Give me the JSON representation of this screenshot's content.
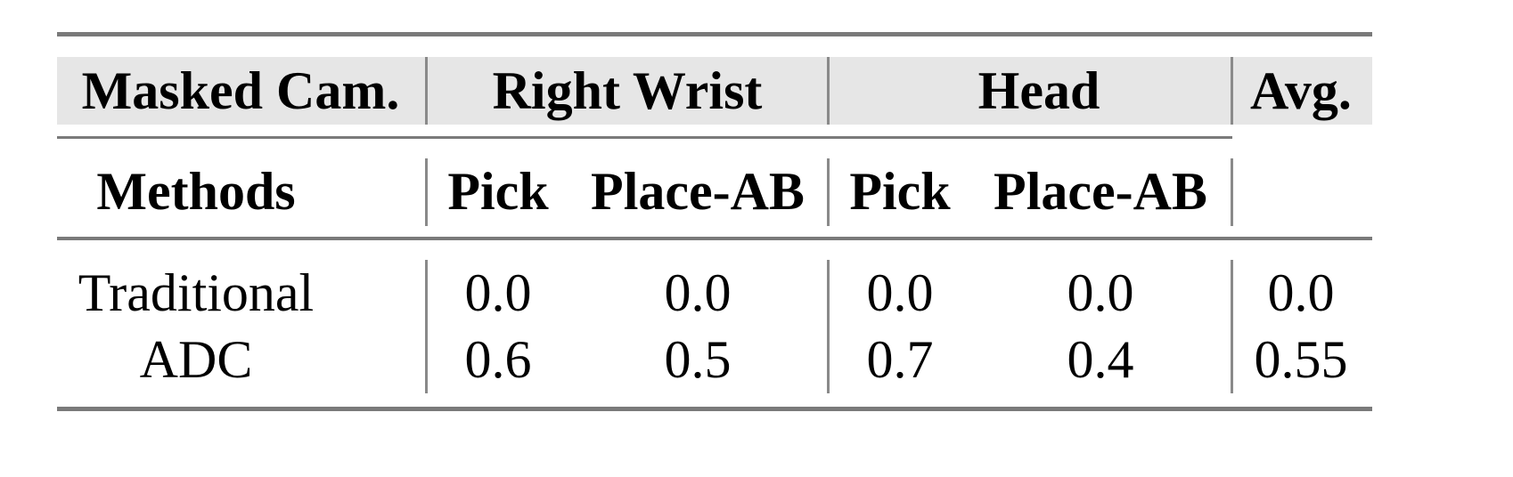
{
  "header": {
    "masked_cam": "Masked Cam.",
    "groups": [
      "Right Wrist",
      "Head"
    ],
    "avg": "Avg."
  },
  "subheader": {
    "methods": "Methods",
    "columns": [
      "Pick",
      "Place-AB",
      "Pick",
      "Place-AB"
    ]
  },
  "rows": [
    {
      "method": "Traditional",
      "values": [
        "0.0",
        "0.0",
        "0.0",
        "0.0",
        "0.0"
      ]
    },
    {
      "method": "ADC",
      "values": [
        "0.6",
        "0.5",
        "0.7",
        "0.4",
        "0.55"
      ]
    }
  ],
  "colors": {
    "header_bg": "#e6e6e6",
    "rule": "#7a7a7a"
  }
}
